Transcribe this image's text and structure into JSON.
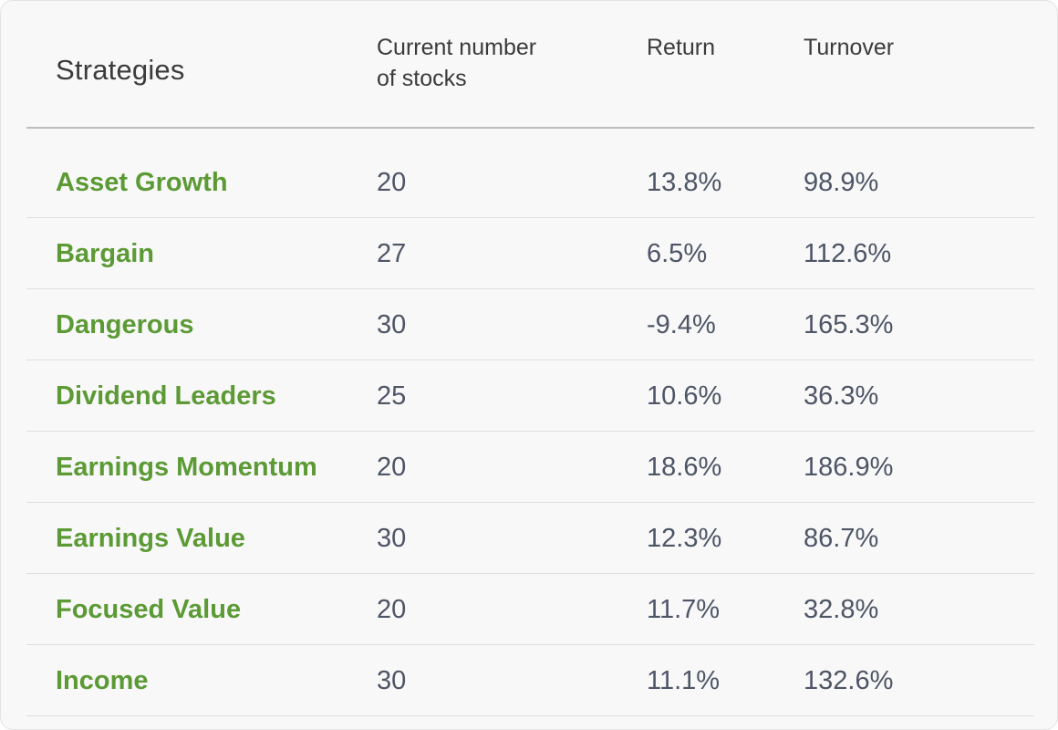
{
  "table": {
    "headers": {
      "strategies": "Strategies",
      "count_line1": "Current number",
      "count_line2": "of stocks",
      "return": "Return",
      "turnover": "Turnover"
    },
    "rows": [
      {
        "name": "Asset Growth",
        "count": "20",
        "return": "13.8%",
        "turnover": "98.9%"
      },
      {
        "name": "Bargain",
        "count": "27",
        "return": "6.5%",
        "turnover": "112.6%"
      },
      {
        "name": "Dangerous",
        "count": "30",
        "return": "-9.4%",
        "turnover": "165.3%"
      },
      {
        "name": "Dividend Leaders",
        "count": "25",
        "return": "10.6%",
        "turnover": "36.3%"
      },
      {
        "name": "Earnings Momentum",
        "count": "20",
        "return": "18.6%",
        "turnover": "186.9%"
      },
      {
        "name": "Earnings Value",
        "count": "30",
        "return": "12.3%",
        "turnover": "86.7%"
      },
      {
        "name": "Focused Value",
        "count": "20",
        "return": "11.7%",
        "turnover": "32.8%"
      },
      {
        "name": "Income",
        "count": "30",
        "return": "11.1%",
        "turnover": "132.6%"
      }
    ]
  },
  "colors": {
    "link_green": "#5c9a35",
    "value_slate": "#4d5566",
    "header_text": "#3b3b3b",
    "card_bg": "#f8f8f8"
  }
}
